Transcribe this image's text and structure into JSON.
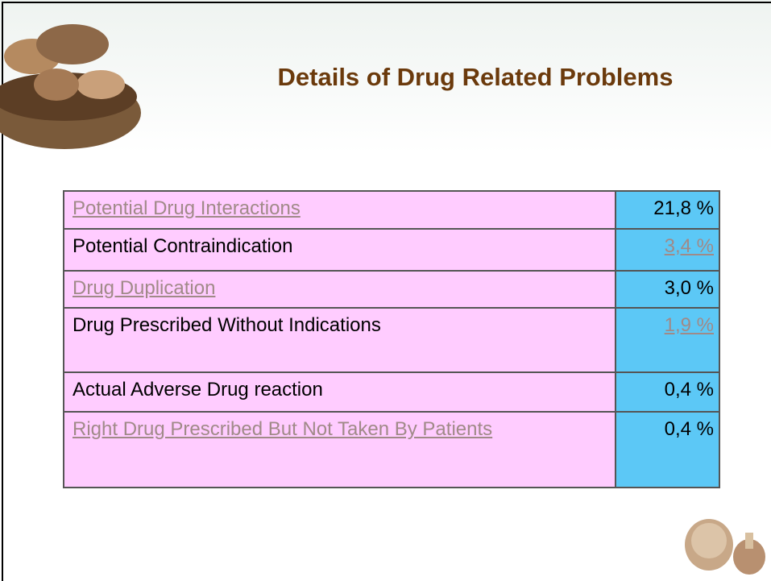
{
  "header": {
    "title": "Details of Drug Related Problems"
  },
  "table": {
    "rows": [
      [
        "Potential Drug Interactions",
        "21,8 %"
      ],
      [
        "Potential Contraindication",
        "3,4 %"
      ],
      [
        "Drug Duplication",
        "3,0 %"
      ],
      [
        "Drug Prescribed Without Indications",
        "1,9 %"
      ],
      [
        "Actual Adverse Drug reaction",
        "0,4 %"
      ],
      [
        "Right Drug Prescribed But Not Taken By Patients",
        "0,4 %"
      ]
    ]
  }
}
